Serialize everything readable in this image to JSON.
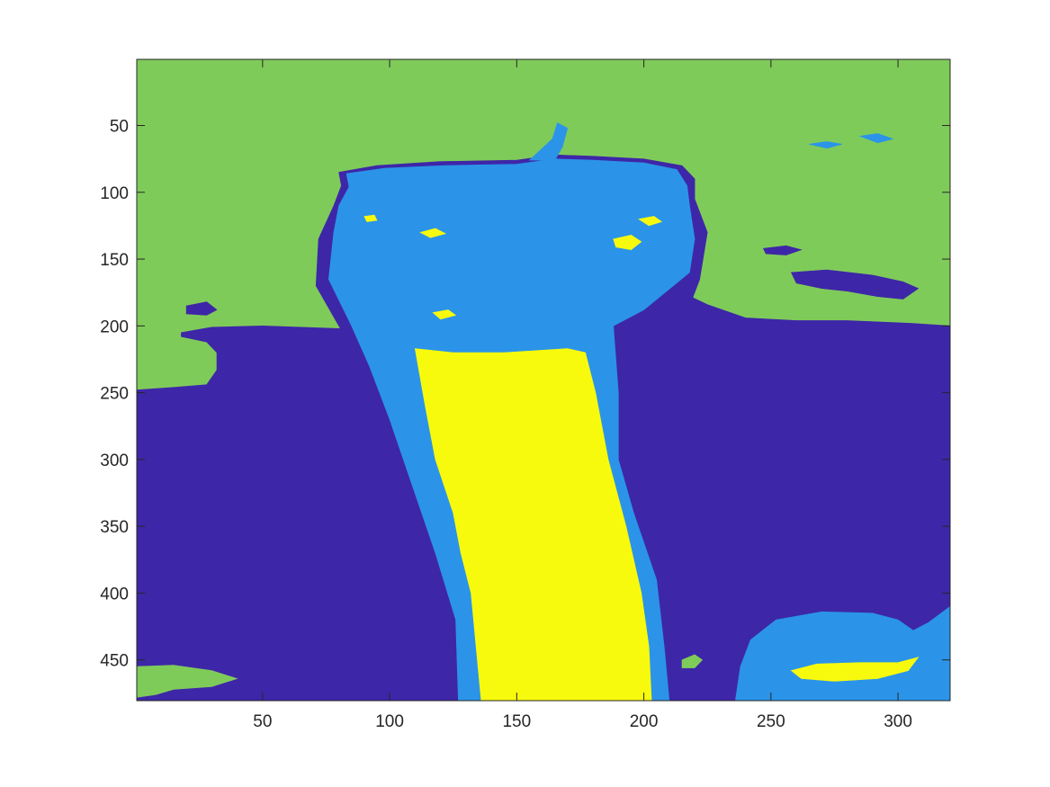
{
  "chart_data": {
    "type": "heatmap",
    "title": "",
    "xlabel": "",
    "ylabel": "",
    "xlim": [
      0.5,
      320.5
    ],
    "ylim": [
      0.5,
      480.5
    ],
    "y_reversed": true,
    "grid": false,
    "legend": "none",
    "x_ticks": [
      50,
      100,
      150,
      200,
      250,
      300
    ],
    "x_tick_labels": [
      "50",
      "100",
      "150",
      "200",
      "250",
      "300"
    ],
    "y_ticks": [
      50,
      100,
      150,
      200,
      250,
      300,
      350,
      400,
      450
    ],
    "y_tick_labels": [
      "50",
      "100",
      "150",
      "200",
      "250",
      "300",
      "350",
      "400",
      "450"
    ],
    "colormap": "parula",
    "classes": [
      {
        "value": 1,
        "color": "#3E26A8"
      },
      {
        "value": 2,
        "color": "#2B94E8"
      },
      {
        "value": 3,
        "color": "#7FCB5A"
      },
      {
        "value": 4,
        "color": "#F8FA0D"
      }
    ],
    "regions": [
      {
        "class": 3,
        "name": "upper-left-region",
        "polygon": [
          [
            0.5,
            0.5
          ],
          [
            320.5,
            0.5
          ],
          [
            320.5,
            200
          ],
          [
            305,
            198
          ],
          [
            280,
            196
          ],
          [
            260,
            196
          ],
          [
            240,
            194
          ],
          [
            225,
            184
          ],
          [
            215,
            175
          ],
          [
            205,
            180
          ],
          [
            195,
            184
          ],
          [
            180,
            186
          ],
          [
            170,
            188
          ],
          [
            155,
            190
          ],
          [
            140,
            192
          ],
          [
            125,
            194
          ],
          [
            110,
            196
          ],
          [
            95,
            200
          ],
          [
            80,
            202
          ],
          [
            65,
            201
          ],
          [
            50,
            200
          ],
          [
            30,
            201
          ],
          [
            18,
            205
          ],
          [
            18,
            208
          ],
          [
            28,
            212
          ],
          [
            32,
            220
          ],
          [
            32,
            233
          ],
          [
            28,
            244
          ],
          [
            15,
            246
          ],
          [
            0.5,
            248
          ]
        ]
      },
      {
        "class": 1,
        "name": "dark-blue-field",
        "polygon": [
          [
            0.5,
            248
          ],
          [
            15,
            246
          ],
          [
            28,
            244
          ],
          [
            32,
            233
          ],
          [
            32,
            220
          ],
          [
            28,
            212
          ],
          [
            18,
            208
          ],
          [
            18,
            205
          ],
          [
            30,
            201
          ],
          [
            50,
            200
          ],
          [
            65,
            201
          ],
          [
            80,
            202
          ],
          [
            95,
            200
          ],
          [
            110,
            196
          ],
          [
            125,
            194
          ],
          [
            140,
            192
          ],
          [
            155,
            190
          ],
          [
            170,
            188
          ],
          [
            180,
            186
          ],
          [
            195,
            184
          ],
          [
            205,
            180
          ],
          [
            215,
            175
          ],
          [
            225,
            184
          ],
          [
            240,
            194
          ],
          [
            260,
            196
          ],
          [
            280,
            196
          ],
          [
            305,
            198
          ],
          [
            320.5,
            200
          ],
          [
            320.5,
            480.5
          ],
          [
            0.5,
            480.5
          ]
        ]
      },
      {
        "class": 1,
        "name": "plume-border",
        "polygon": [
          [
            81,
            95
          ],
          [
            80,
            85
          ],
          [
            95,
            80
          ],
          [
            120,
            77
          ],
          [
            150,
            76
          ],
          [
            165,
            72
          ],
          [
            180,
            73
          ],
          [
            200,
            75
          ],
          [
            215,
            80
          ],
          [
            220,
            90
          ],
          [
            220,
            105
          ],
          [
            225,
            130
          ],
          [
            222,
            165
          ],
          [
            215,
            200
          ],
          [
            200,
            240
          ],
          [
            190,
            280
          ],
          [
            195,
            330
          ],
          [
            202,
            380
          ],
          [
            210,
            440
          ],
          [
            212,
            480.5
          ],
          [
            122,
            480.5
          ],
          [
            120,
            420
          ],
          [
            112,
            370
          ],
          [
            104,
            320
          ],
          [
            95,
            270
          ],
          [
            88,
            230
          ],
          [
            80,
            200
          ],
          [
            71,
            170
          ],
          [
            72,
            135
          ],
          [
            78,
            110
          ]
        ]
      },
      {
        "class": 2,
        "name": "plume-light-blue",
        "polygon": [
          [
            84,
            96
          ],
          [
            83,
            86
          ],
          [
            98,
            82
          ],
          [
            122,
            80
          ],
          [
            150,
            79
          ],
          [
            165,
            75
          ],
          [
            180,
            76
          ],
          [
            200,
            78
          ],
          [
            213,
            83
          ],
          [
            217,
            95
          ],
          [
            218,
            110
          ],
          [
            220,
            135
          ],
          [
            218,
            160
          ],
          [
            200,
            188
          ],
          [
            188,
            200
          ],
          [
            190,
            250
          ],
          [
            190,
            300
          ],
          [
            196,
            340
          ],
          [
            205,
            390
          ],
          [
            208,
            440
          ],
          [
            210,
            480.5
          ],
          [
            127,
            480.5
          ],
          [
            126,
            420
          ],
          [
            118,
            370
          ],
          [
            109,
            320
          ],
          [
            100,
            270
          ],
          [
            92,
            230
          ],
          [
            85,
            200
          ],
          [
            76,
            165
          ],
          [
            78,
            130
          ],
          [
            80,
            110
          ]
        ]
      },
      {
        "class": 2,
        "name": "plume-tip",
        "polygon": [
          [
            155,
            76
          ],
          [
            164,
            60
          ],
          [
            166,
            48
          ],
          [
            170,
            52
          ],
          [
            168,
            66
          ],
          [
            165,
            76
          ]
        ]
      },
      {
        "class": 4,
        "name": "yellow-band",
        "polygon": [
          [
            110,
            217
          ],
          [
            125,
            220
          ],
          [
            145,
            220
          ],
          [
            170,
            217
          ],
          [
            177,
            220
          ],
          [
            181,
            250
          ],
          [
            186,
            300
          ],
          [
            193,
            350
          ],
          [
            199,
            400
          ],
          [
            202,
            440
          ],
          [
            203,
            480.5
          ],
          [
            136,
            480.5
          ],
          [
            134,
            440
          ],
          [
            132,
            400
          ],
          [
            128,
            370
          ],
          [
            125,
            340
          ],
          [
            118,
            300
          ],
          [
            114,
            260
          ]
        ]
      },
      {
        "class": 1,
        "name": "dark-blob-right-1",
        "polygon": [
          [
            258,
            160
          ],
          [
            272,
            158
          ],
          [
            290,
            162
          ],
          [
            302,
            167
          ],
          [
            308,
            172
          ],
          [
            302,
            180
          ],
          [
            292,
            178
          ],
          [
            280,
            174
          ],
          [
            270,
            172
          ],
          [
            260,
            168
          ]
        ]
      },
      {
        "class": 1,
        "name": "dark-blob-right-2",
        "polygon": [
          [
            247,
            142
          ],
          [
            256,
            140
          ],
          [
            262,
            143
          ],
          [
            256,
            147
          ],
          [
            248,
            146
          ]
        ]
      },
      {
        "class": 1,
        "name": "dark-blob-left",
        "polygon": [
          [
            20,
            185
          ],
          [
            28,
            182
          ],
          [
            32,
            188
          ],
          [
            28,
            192
          ],
          [
            20,
            191
          ]
        ]
      },
      {
        "class": 2,
        "name": "light-fleck-upper-right",
        "polygon": [
          [
            265,
            64
          ],
          [
            272,
            62
          ],
          [
            278,
            64
          ],
          [
            272,
            67
          ]
        ]
      },
      {
        "class": 2,
        "name": "light-fleck-upper-right-2",
        "polygon": [
          [
            285,
            58
          ],
          [
            292,
            56
          ],
          [
            298,
            60
          ],
          [
            292,
            63
          ]
        ]
      },
      {
        "class": 2,
        "name": "light-region-bottom-right",
        "polygon": [
          [
            236,
            480.5
          ],
          [
            238,
            455
          ],
          [
            242,
            435
          ],
          [
            252,
            420
          ],
          [
            270,
            414
          ],
          [
            290,
            415
          ],
          [
            300,
            420
          ],
          [
            306,
            428
          ],
          [
            312,
            422
          ],
          [
            320.5,
            410
          ],
          [
            320.5,
            480.5
          ]
        ]
      },
      {
        "class": 4,
        "name": "yellow-region-bottom-right",
        "polygon": [
          [
            258,
            458
          ],
          [
            268,
            453
          ],
          [
            285,
            452
          ],
          [
            300,
            452
          ],
          [
            308,
            448
          ],
          [
            304,
            458
          ],
          [
            292,
            464
          ],
          [
            275,
            466
          ],
          [
            262,
            464
          ]
        ]
      },
      {
        "class": 3,
        "name": "green-spot-bottom",
        "polygon": [
          [
            215,
            450
          ],
          [
            220,
            446
          ],
          [
            223,
            450
          ],
          [
            220,
            456
          ],
          [
            215,
            456
          ]
        ]
      },
      {
        "class": 3,
        "name": "green-region-bottom-left",
        "polygon": [
          [
            0.5,
            455
          ],
          [
            15,
            454
          ],
          [
            30,
            458
          ],
          [
            40,
            464
          ],
          [
            30,
            470
          ],
          [
            15,
            472
          ],
          [
            8,
            476
          ],
          [
            0.5,
            478
          ]
        ]
      },
      {
        "class": 4,
        "name": "yellow-fleck-1",
        "polygon": [
          [
            112,
            130
          ],
          [
            118,
            127
          ],
          [
            122,
            131
          ],
          [
            116,
            134
          ]
        ]
      },
      {
        "class": 4,
        "name": "yellow-fleck-2",
        "polygon": [
          [
            188,
            135
          ],
          [
            195,
            132
          ],
          [
            199,
            137
          ],
          [
            195,
            143
          ],
          [
            189,
            141
          ]
        ]
      },
      {
        "class": 4,
        "name": "yellow-fleck-3",
        "polygon": [
          [
            117,
            190
          ],
          [
            123,
            188
          ],
          [
            126,
            192
          ],
          [
            120,
            195
          ]
        ]
      },
      {
        "class": 4,
        "name": "yellow-fleck-4",
        "polygon": [
          [
            198,
            120
          ],
          [
            204,
            118
          ],
          [
            207,
            122
          ],
          [
            202,
            125
          ]
        ]
      },
      {
        "class": 4,
        "name": "yellow-fleck-5",
        "polygon": [
          [
            90,
            118
          ],
          [
            94,
            117
          ],
          [
            95,
            121
          ],
          [
            91,
            122
          ]
        ]
      }
    ]
  }
}
